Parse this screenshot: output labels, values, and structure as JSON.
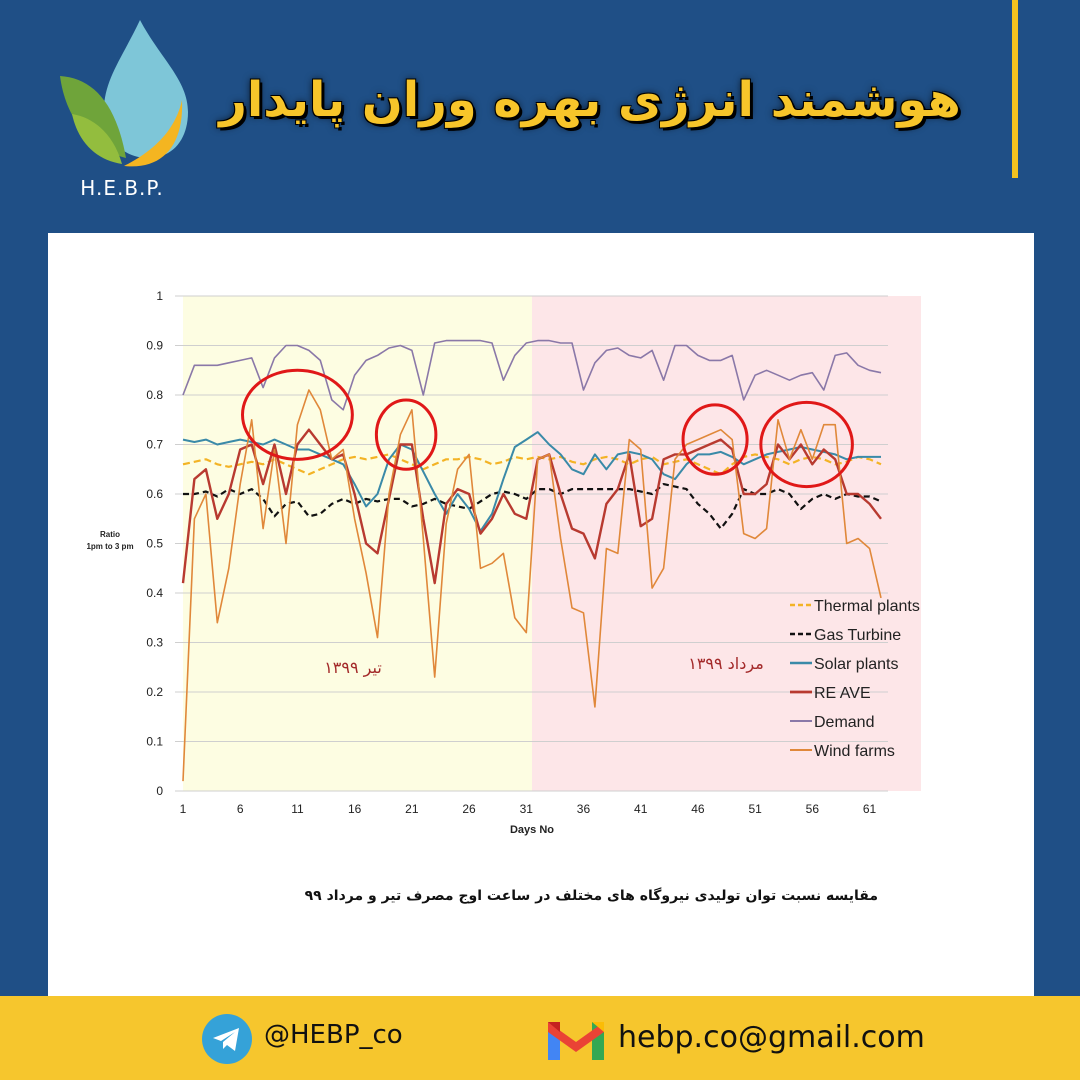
{
  "header": {
    "logo_text": "H.E.B.P.",
    "title": "هوشمند انرژی بهره وران پایدار",
    "colors": {
      "background": "#1f4f86",
      "title": "#f7c52a",
      "accent_bar": "#f3c21f"
    }
  },
  "caption": "مقایسه نسبت توان تولیدی نیروگاه های مختلف در ساعت اوج مصرف تیر و مرداد ۹۹",
  "footer": {
    "telegram_icon": "telegram-icon",
    "telegram_handle": "@HEBP_co",
    "mail_icon": "gmail-icon",
    "email": "hebp.co@gmail.com",
    "background": "#f6c62d"
  },
  "chart_data": {
    "type": "line",
    "xlabel": "Days No",
    "ylabel": "Ratio\n1pm to 3 pm",
    "xlim": [
      1,
      62
    ],
    "ylim": [
      0,
      1
    ],
    "x_ticks": [
      1,
      6,
      11,
      16,
      21,
      26,
      31,
      36,
      41,
      46,
      51,
      56,
      61
    ],
    "y_ticks": [
      0,
      0.1,
      0.2,
      0.3,
      0.4,
      0.5,
      0.6,
      0.7,
      0.8,
      0.9,
      1
    ],
    "y_tick_labels": [
      "0",
      "0.1",
      "0.2",
      "0.3",
      "0.4",
      "0.5",
      "0.6",
      "0.7",
      "0.8",
      "0.9",
      "1"
    ],
    "legend_position": "bottom-right",
    "regions": [
      {
        "label": "تیر ۱۳۹۹",
        "x_start": 1,
        "x_end": 31.5,
        "color": "#fdfde2"
      },
      {
        "label": "مرداد ۱۳۹۹",
        "x_start": 31.5,
        "x_end": 62,
        "color": "#fde6e8"
      }
    ],
    "highlight_circles": [
      {
        "cx": 11,
        "cy": 0.76,
        "rx": 4.8,
        "ry": 0.09
      },
      {
        "cx": 20.5,
        "cy": 0.72,
        "rx": 2.6,
        "ry": 0.07
      },
      {
        "cx": 47.5,
        "cy": 0.71,
        "rx": 2.8,
        "ry": 0.07
      },
      {
        "cx": 55.5,
        "cy": 0.7,
        "rx": 4.0,
        "ry": 0.085
      }
    ],
    "x": [
      1,
      2,
      3,
      4,
      5,
      6,
      7,
      8,
      9,
      10,
      11,
      12,
      13,
      14,
      15,
      16,
      17,
      18,
      19,
      20,
      21,
      22,
      23,
      24,
      25,
      26,
      27,
      28,
      29,
      30,
      31,
      32,
      33,
      34,
      35,
      36,
      37,
      38,
      39,
      40,
      41,
      42,
      43,
      44,
      45,
      46,
      47,
      48,
      49,
      50,
      51,
      52,
      53,
      54,
      55,
      56,
      57,
      58,
      59,
      60,
      61,
      62
    ],
    "series": [
      {
        "name": "Thermal plants",
        "color": "#f3b325",
        "dash": "7,4",
        "width": 2.2,
        "values": [
          0.66,
          0.665,
          0.67,
          0.66,
          0.655,
          0.66,
          0.665,
          0.66,
          0.67,
          0.66,
          0.65,
          0.64,
          0.65,
          0.66,
          0.67,
          0.675,
          0.67,
          0.675,
          0.68,
          0.67,
          0.66,
          0.65,
          0.66,
          0.67,
          0.67,
          0.675,
          0.67,
          0.66,
          0.665,
          0.675,
          0.67,
          0.675,
          0.67,
          0.675,
          0.665,
          0.66,
          0.67,
          0.675,
          0.67,
          0.66,
          0.67,
          0.675,
          0.66,
          0.665,
          0.67,
          0.66,
          0.65,
          0.64,
          0.66,
          0.675,
          0.68,
          0.675,
          0.67,
          0.66,
          0.67,
          0.675,
          0.67,
          0.66,
          0.665,
          0.675,
          0.67,
          0.66
        ]
      },
      {
        "name": "Gas Turbine",
        "color": "#111111",
        "dash": "6,4",
        "width": 2.2,
        "values": [
          0.6,
          0.6,
          0.605,
          0.595,
          0.61,
          0.6,
          0.61,
          0.59,
          0.555,
          0.58,
          0.585,
          0.555,
          0.56,
          0.58,
          0.59,
          0.58,
          0.59,
          0.585,
          0.59,
          0.59,
          0.575,
          0.58,
          0.59,
          0.58,
          0.575,
          0.57,
          0.585,
          0.6,
          0.605,
          0.6,
          0.59,
          0.61,
          0.61,
          0.6,
          0.61,
          0.61,
          0.61,
          0.61,
          0.61,
          0.61,
          0.605,
          0.6,
          0.62,
          0.615,
          0.61,
          0.58,
          0.56,
          0.53,
          0.56,
          0.61,
          0.6,
          0.6,
          0.61,
          0.6,
          0.57,
          0.59,
          0.6,
          0.59,
          0.6,
          0.595,
          0.595,
          0.585
        ]
      },
      {
        "name": "Solar plants",
        "color": "#3a8aa8",
        "dash": "",
        "width": 2,
        "values": [
          0.71,
          0.705,
          0.71,
          0.7,
          0.705,
          0.71,
          0.705,
          0.7,
          0.71,
          0.7,
          0.69,
          0.69,
          0.68,
          0.67,
          0.66,
          0.62,
          0.575,
          0.6,
          0.67,
          0.7,
          0.69,
          0.645,
          0.6,
          0.56,
          0.6,
          0.57,
          0.525,
          0.56,
          0.63,
          0.695,
          0.71,
          0.725,
          0.7,
          0.68,
          0.65,
          0.64,
          0.68,
          0.65,
          0.68,
          0.685,
          0.68,
          0.67,
          0.64,
          0.63,
          0.66,
          0.68,
          0.68,
          0.685,
          0.675,
          0.66,
          0.67,
          0.68,
          0.685,
          0.69,
          0.695,
          0.69,
          0.685,
          0.68,
          0.67,
          0.675,
          0.675,
          0.675
        ]
      },
      {
        "name": "RE AVE",
        "color": "#b83a30",
        "dash": "",
        "width": 2.4,
        "values": [
          0.42,
          0.63,
          0.65,
          0.55,
          0.6,
          0.69,
          0.7,
          0.62,
          0.7,
          0.6,
          0.7,
          0.73,
          0.7,
          0.67,
          0.68,
          0.6,
          0.5,
          0.48,
          0.59,
          0.7,
          0.7,
          0.55,
          0.42,
          0.58,
          0.61,
          0.6,
          0.52,
          0.55,
          0.6,
          0.56,
          0.55,
          0.67,
          0.68,
          0.6,
          0.53,
          0.52,
          0.47,
          0.58,
          0.61,
          0.68,
          0.535,
          0.55,
          0.67,
          0.68,
          0.68,
          0.69,
          0.7,
          0.71,
          0.69,
          0.6,
          0.6,
          0.62,
          0.7,
          0.67,
          0.7,
          0.66,
          0.69,
          0.67,
          0.6,
          0.6,
          0.58,
          0.55
        ]
      },
      {
        "name": "Demand",
        "color": "#8a78a8",
        "dash": "",
        "width": 1.6,
        "values": [
          0.8,
          0.86,
          0.86,
          0.86,
          0.865,
          0.87,
          0.875,
          0.815,
          0.875,
          0.9,
          0.9,
          0.89,
          0.87,
          0.79,
          0.77,
          0.84,
          0.87,
          0.88,
          0.895,
          0.9,
          0.89,
          0.8,
          0.905,
          0.91,
          0.91,
          0.91,
          0.91,
          0.905,
          0.83,
          0.88,
          0.905,
          0.91,
          0.91,
          0.905,
          0.905,
          0.81,
          0.865,
          0.89,
          0.895,
          0.88,
          0.875,
          0.89,
          0.83,
          0.9,
          0.9,
          0.88,
          0.87,
          0.87,
          0.88,
          0.79,
          0.84,
          0.85,
          0.84,
          0.83,
          0.84,
          0.845,
          0.81,
          0.88,
          0.885,
          0.86,
          0.85,
          0.845
        ]
      },
      {
        "name": "Wind farms",
        "color": "#e0883a",
        "dash": "",
        "width": 1.6,
        "values": [
          0.02,
          0.55,
          0.6,
          0.34,
          0.45,
          0.62,
          0.75,
          0.53,
          0.69,
          0.5,
          0.74,
          0.81,
          0.77,
          0.67,
          0.69,
          0.55,
          0.44,
          0.31,
          0.6,
          0.72,
          0.77,
          0.51,
          0.23,
          0.54,
          0.65,
          0.68,
          0.45,
          0.46,
          0.48,
          0.35,
          0.32,
          0.67,
          0.68,
          0.51,
          0.37,
          0.36,
          0.17,
          0.49,
          0.48,
          0.71,
          0.69,
          0.41,
          0.45,
          0.67,
          0.7,
          0.71,
          0.72,
          0.73,
          0.71,
          0.52,
          0.51,
          0.53,
          0.75,
          0.67,
          0.73,
          0.67,
          0.74,
          0.74,
          0.5,
          0.51,
          0.49,
          0.39
        ]
      }
    ]
  }
}
